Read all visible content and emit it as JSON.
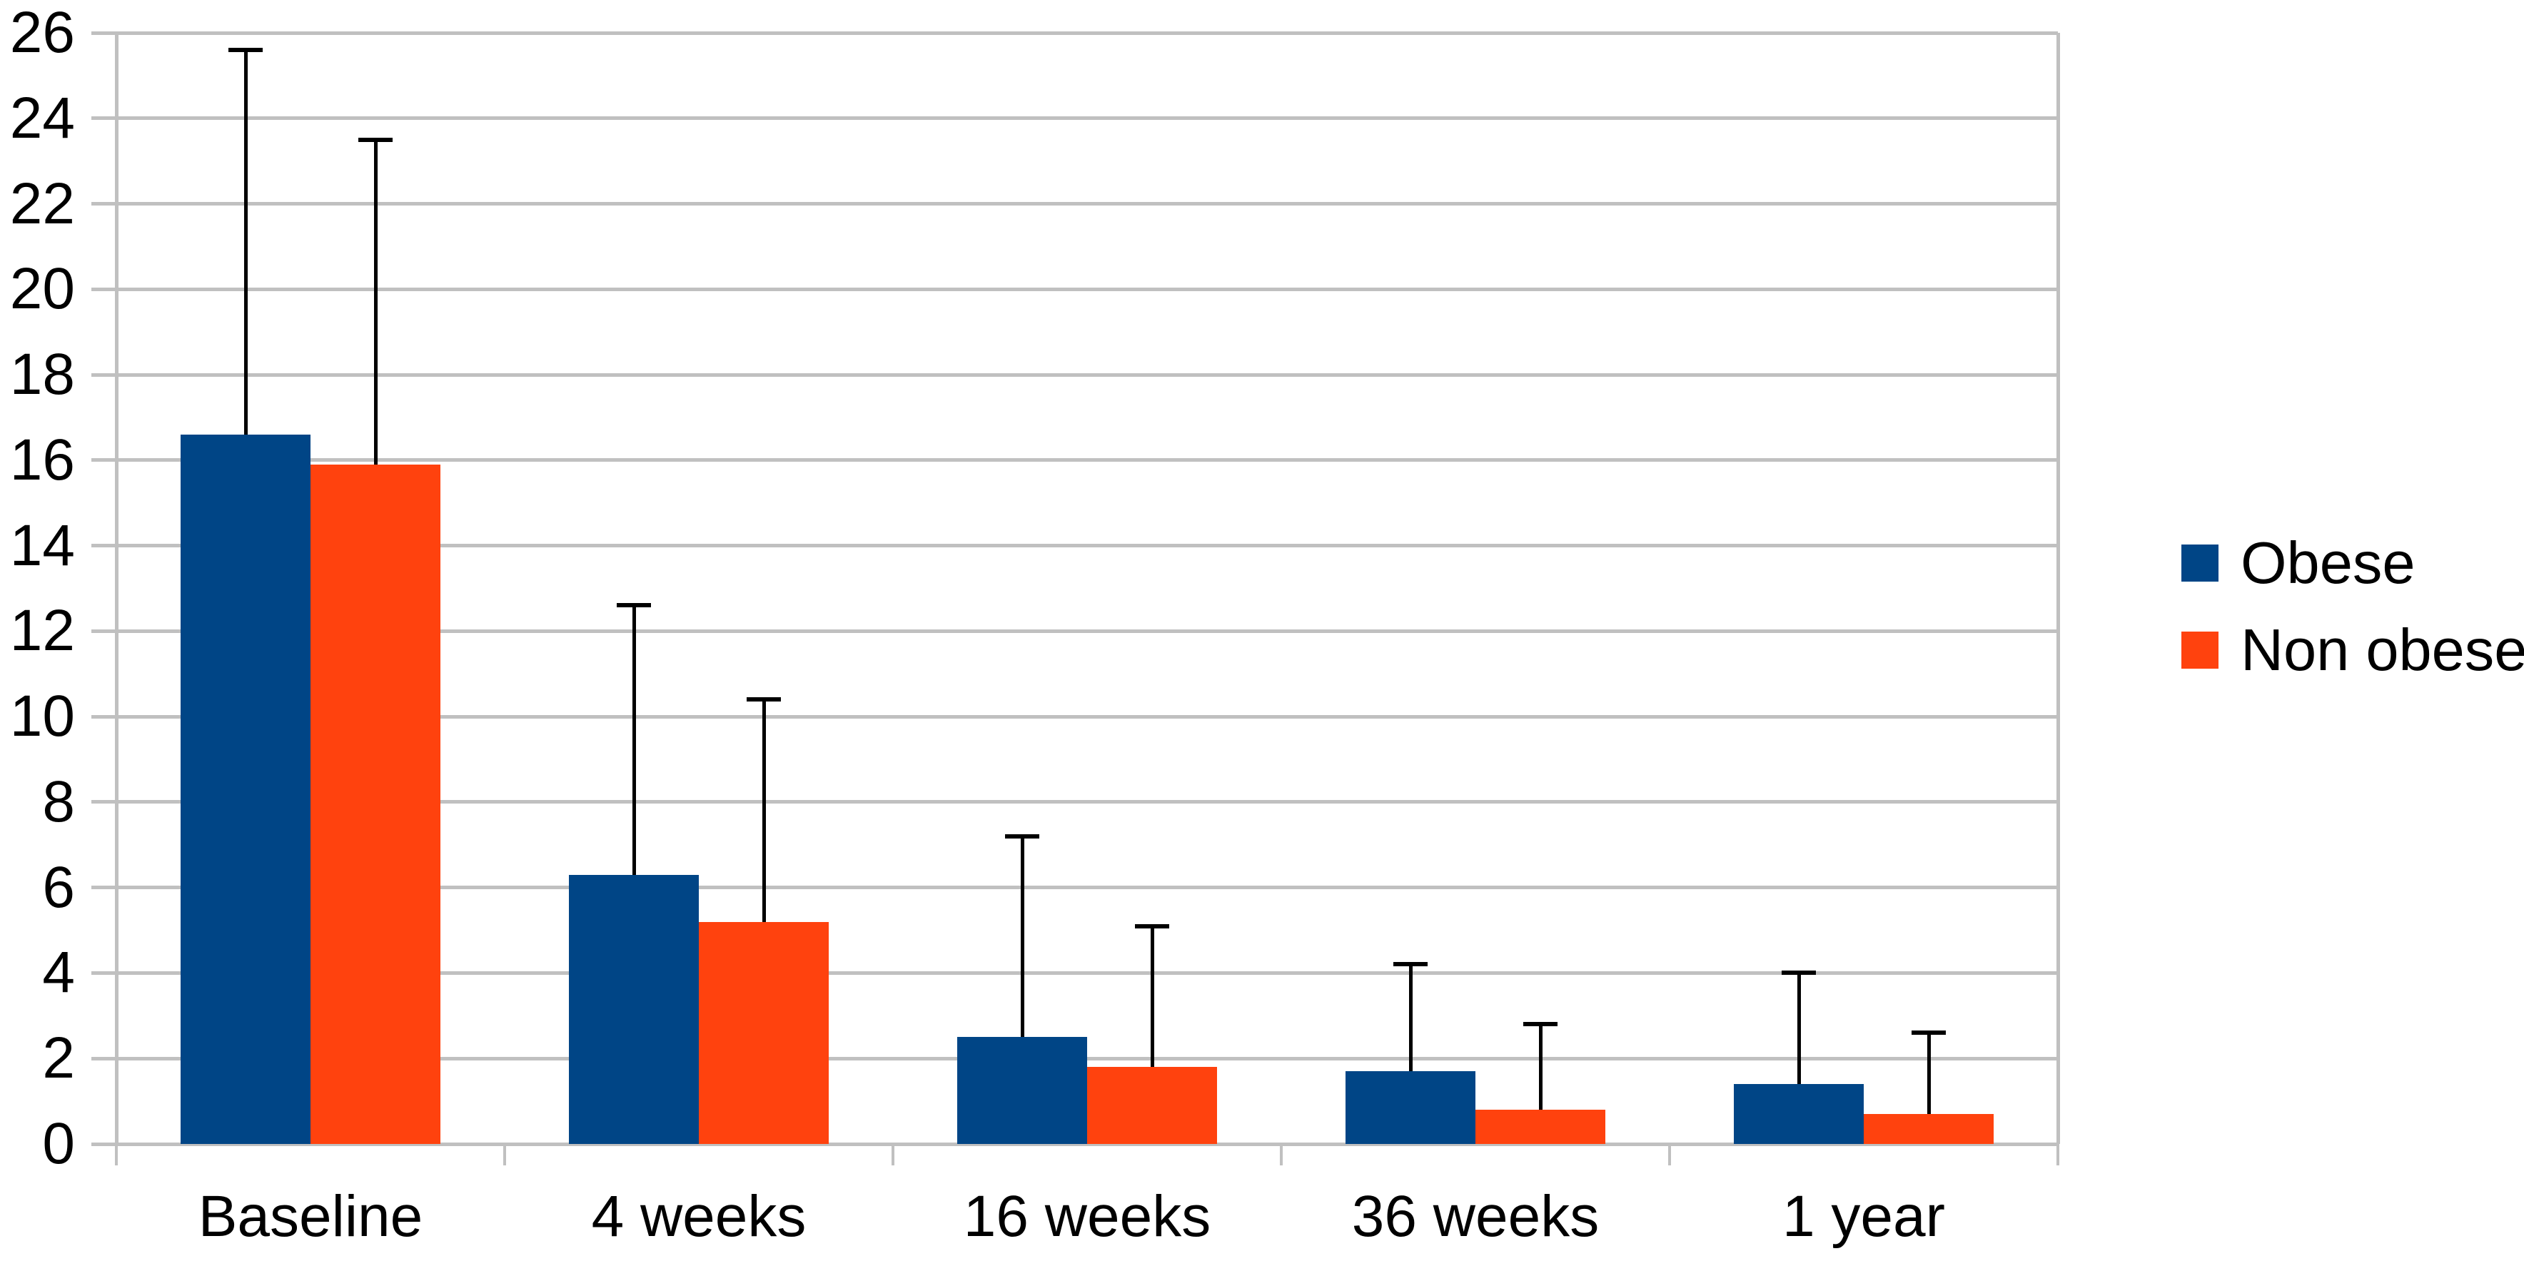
{
  "chart_data": {
    "type": "bar",
    "subtype": "grouped-vertical-with-upper-error-bars",
    "title": "",
    "xlabel": "",
    "ylabel": "",
    "categories": [
      "Baseline",
      "4 weeks",
      "16 weeks",
      "36 weeks",
      "1 year"
    ],
    "series": [
      {
        "name": "Obese",
        "color": "#004586",
        "values": [
          16.6,
          6.3,
          2.5,
          1.7,
          1.4
        ],
        "error_upper": [
          9.0,
          6.3,
          4.7,
          2.5,
          2.6
        ],
        "error_bar_tops": [
          25.6,
          12.6,
          7.2,
          4.2,
          4.0
        ]
      },
      {
        "name": "Non obese",
        "color": "#FF420E",
        "values": [
          15.9,
          5.2,
          1.8,
          0.8,
          0.7
        ],
        "error_upper": [
          7.6,
          5.2,
          3.3,
          2.0,
          1.9
        ],
        "error_bar_tops": [
          23.5,
          10.4,
          5.1,
          2.8,
          2.6
        ]
      }
    ],
    "ylim": [
      0,
      26
    ],
    "yticks": [
      0,
      2,
      4,
      6,
      8,
      10,
      12,
      14,
      16,
      18,
      20,
      22,
      24,
      26
    ],
    "grid": true,
    "legend_position": "right",
    "colors": {
      "gridline": "#C0C0C0",
      "error_bar": "#000000",
      "axis_text": "#000000",
      "background": "#FFFFFF"
    }
  }
}
